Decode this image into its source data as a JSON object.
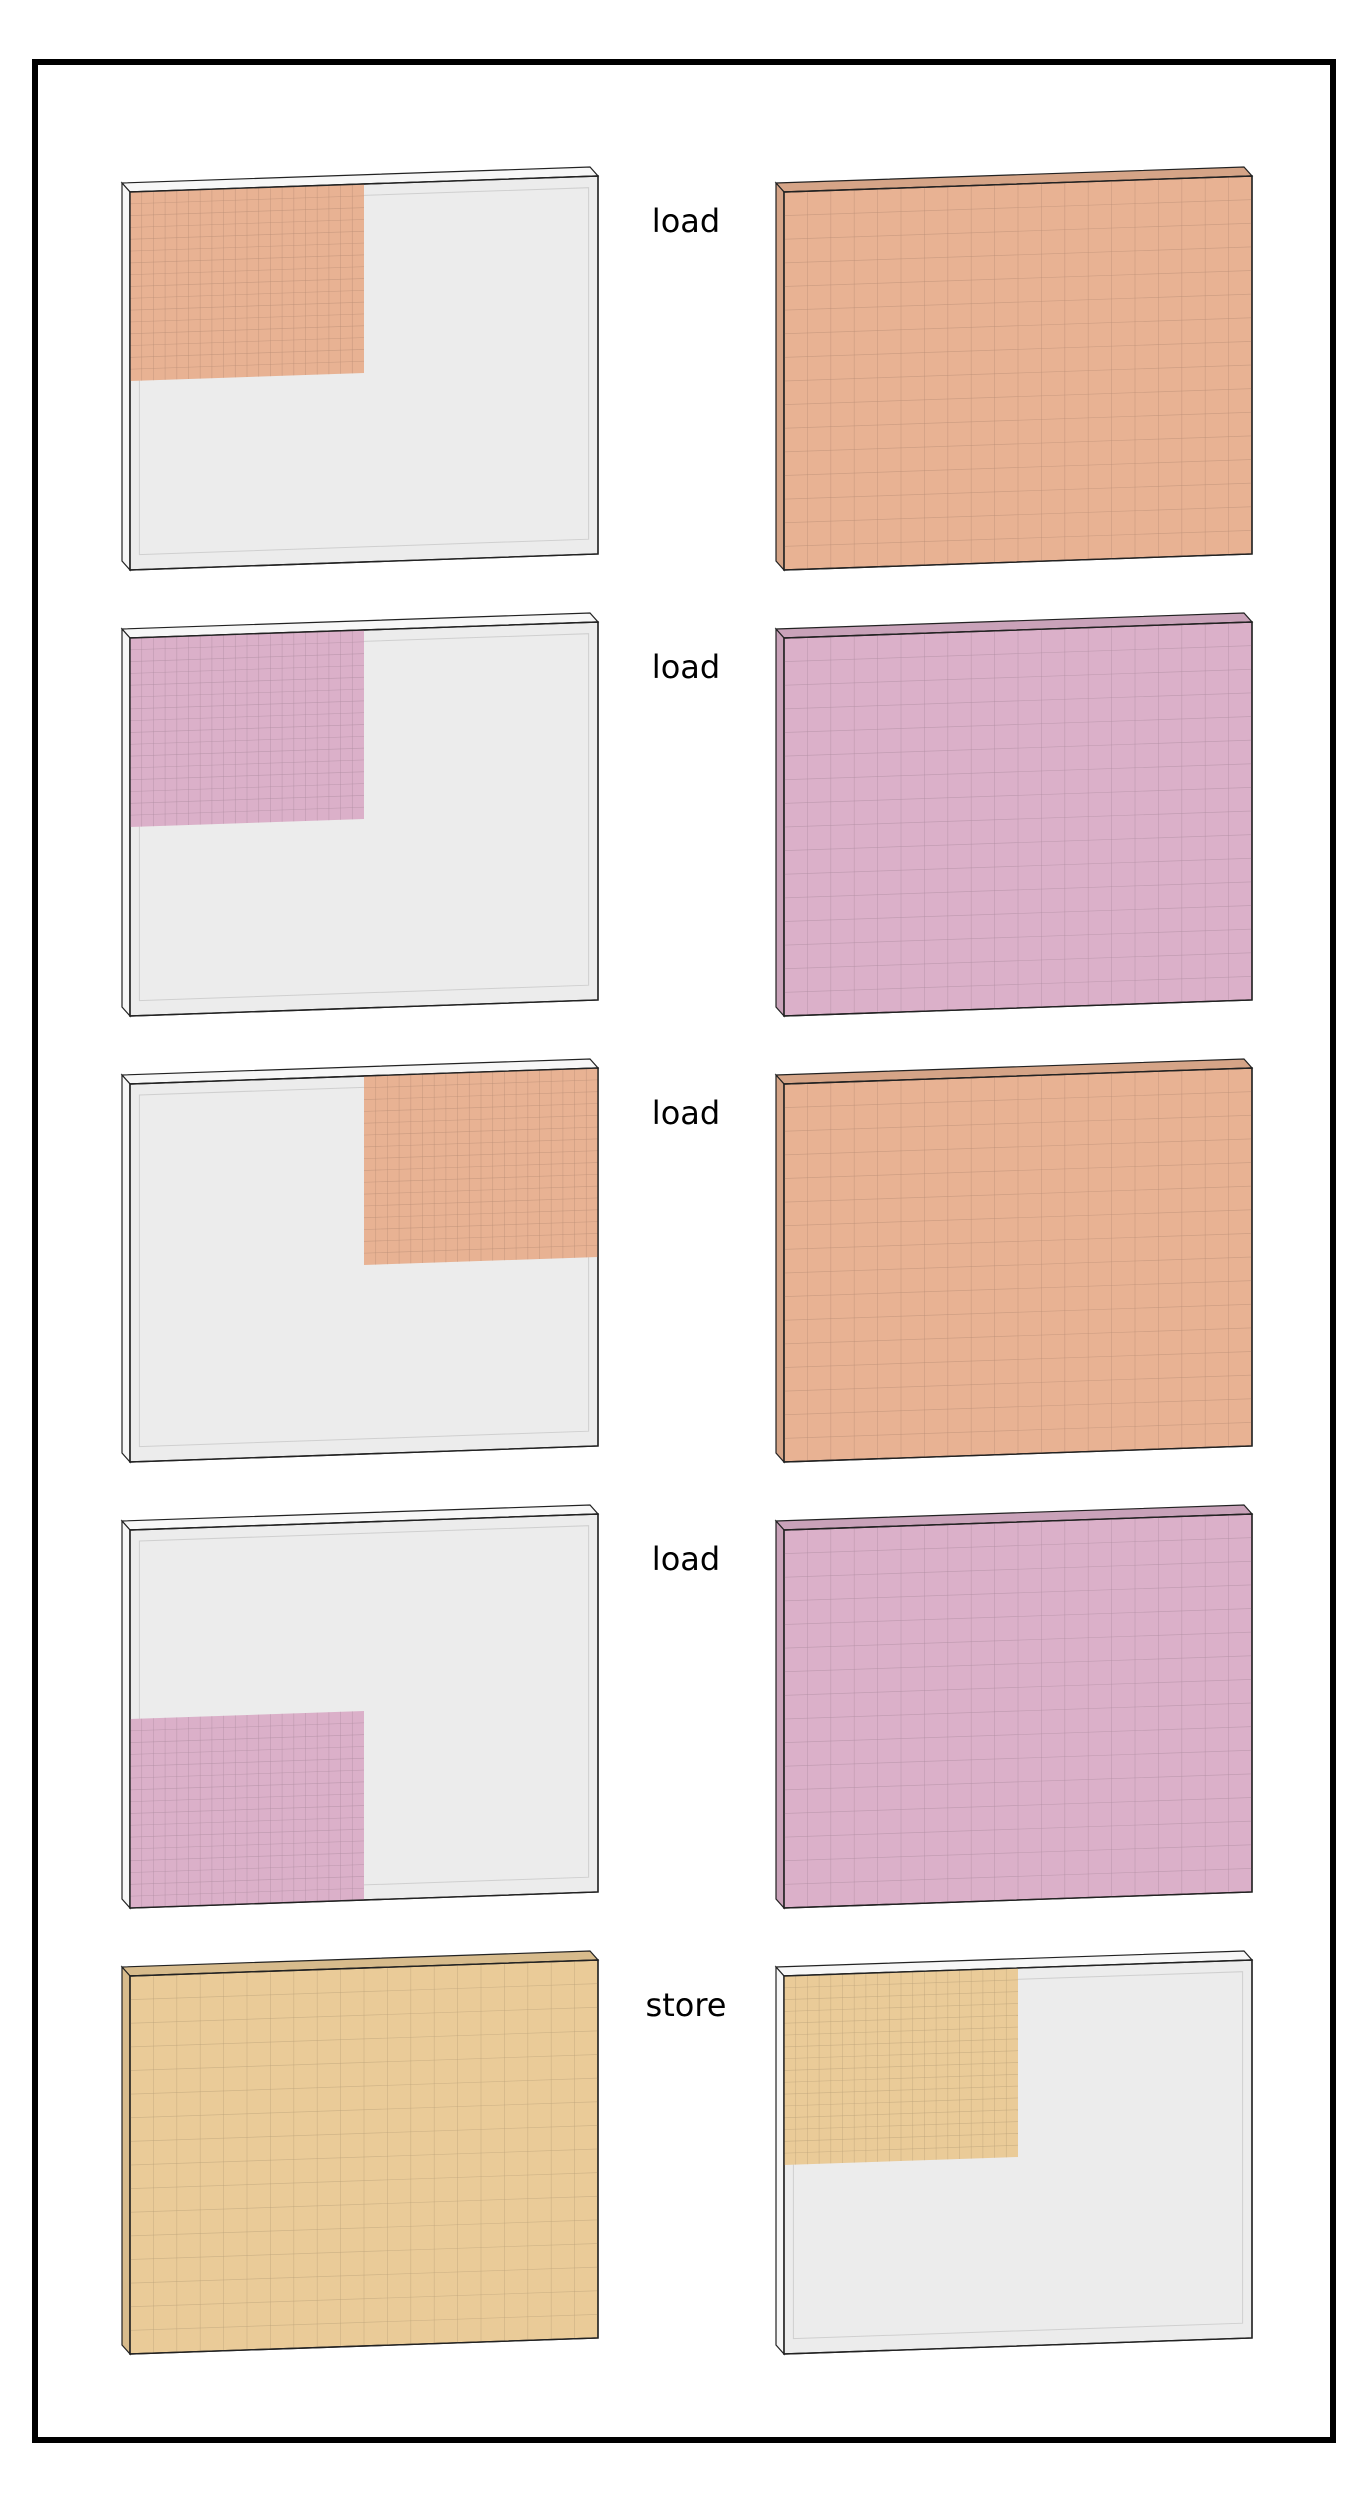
{
  "colors": {
    "orange": "#e8b293",
    "pink": "#dbb0c9",
    "yellow": "#eacb98",
    "empty": "#ececec",
    "edge": "#222222"
  },
  "rows": [
    {
      "op": "load",
      "left": {
        "fill": "orange",
        "tile": "top-left"
      },
      "right": {
        "fill": "orange",
        "tile": "full"
      }
    },
    {
      "op": "load",
      "left": {
        "fill": "pink",
        "tile": "top-left"
      },
      "right": {
        "fill": "pink",
        "tile": "full"
      }
    },
    {
      "op": "load",
      "left": {
        "fill": "orange",
        "tile": "top-right"
      },
      "right": {
        "fill": "orange",
        "tile": "full"
      }
    },
    {
      "op": "load",
      "left": {
        "fill": "pink",
        "tile": "bottom-left"
      },
      "right": {
        "fill": "pink",
        "tile": "full"
      }
    },
    {
      "op": "store",
      "left": {
        "fill": "yellow",
        "tile": "full"
      },
      "right": {
        "fill": "yellow",
        "tile": "top-left"
      }
    }
  ]
}
